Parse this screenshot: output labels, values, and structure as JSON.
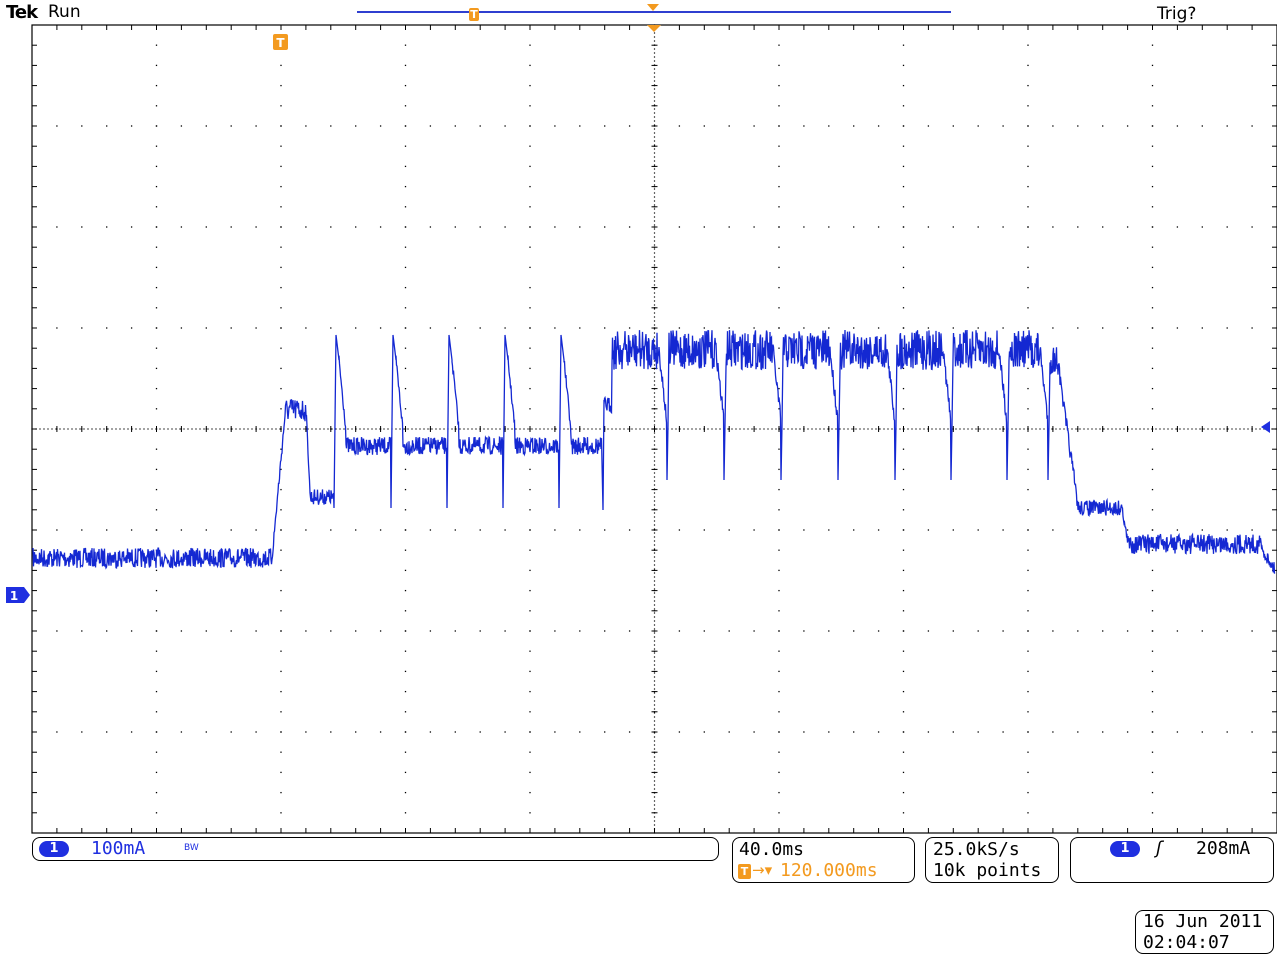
{
  "header": {
    "brand": "Tek",
    "run_status": "Run",
    "trigger_status": "Trig?"
  },
  "markers": {
    "trigger_position_icon": "T",
    "channel_ground_icon": "1"
  },
  "channel1": {
    "label": "1",
    "scale": "100mA",
    "bandwidth_limit": "BW",
    "color": "#1f2fe0"
  },
  "timebase": {
    "scale": "40.0ms",
    "delay_icon": "T",
    "delay_arrow": "→▾",
    "delay": "120.000ms",
    "delay_color": "#f39a1f"
  },
  "acquisition": {
    "sample_rate": "25.0kS/s",
    "record_length": "10k points"
  },
  "trigger": {
    "source": "1",
    "slope_icon": "rising-edge-icon",
    "slope_symbol": "ʃ",
    "level": "208mA"
  },
  "timestamp": {
    "date": "16 Jun  2011",
    "time": "02:04:07"
  },
  "colors": {
    "trace": "#1428d2",
    "marker": "#f39a1f",
    "grid": "#000000"
  }
}
